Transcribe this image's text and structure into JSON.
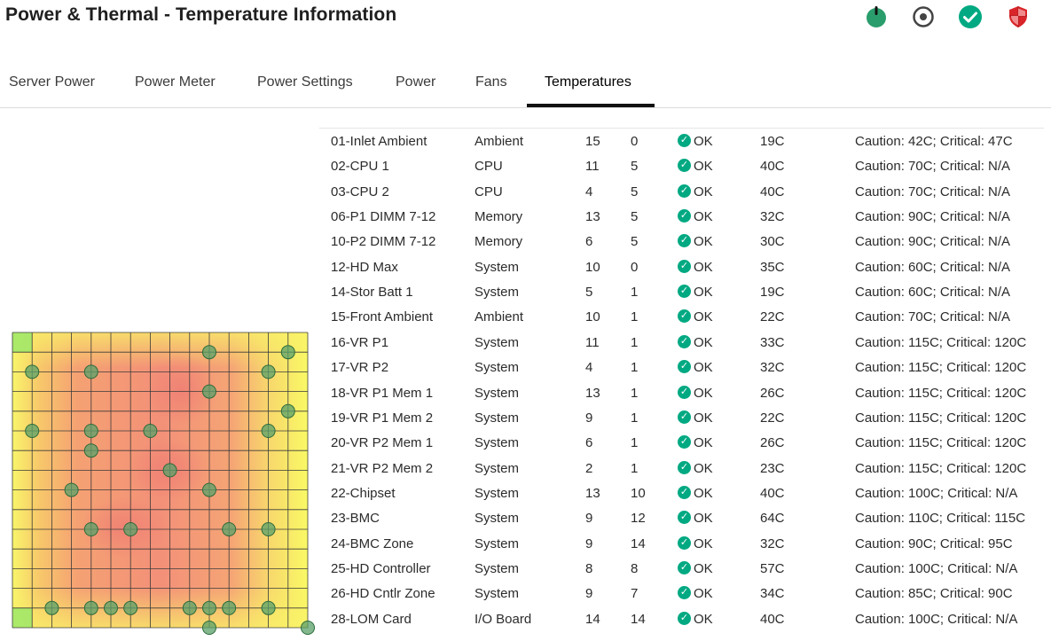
{
  "page": {
    "title": "Power & Thermal - Temperature Information"
  },
  "header_icons": [
    {
      "name": "power-status-icon",
      "color": "#2a9d6c"
    },
    {
      "name": "uid-indicator-icon",
      "color": "#555555"
    },
    {
      "name": "health-ok-icon",
      "color": "#01a982"
    },
    {
      "name": "security-shield-icon",
      "color": "#d9252a"
    }
  ],
  "tabs": [
    {
      "label": "Server Power",
      "active": false
    },
    {
      "label": "Power Meter",
      "active": false
    },
    {
      "label": "Power Settings",
      "active": false
    },
    {
      "label": "Power",
      "active": false
    },
    {
      "label": "Fans",
      "active": false
    },
    {
      "label": "Temperatures",
      "active": true
    }
  ],
  "sensors": [
    {
      "name": "01-Inlet Ambient",
      "context": "Ambient",
      "x": "15",
      "y": "0",
      "status": "OK",
      "reading": "19C",
      "thresholds": "Caution: 42C; Critical: 47C"
    },
    {
      "name": "02-CPU 1",
      "context": "CPU",
      "x": "11",
      "y": "5",
      "status": "OK",
      "reading": "40C",
      "thresholds": "Caution: 70C; Critical: N/A"
    },
    {
      "name": "03-CPU 2",
      "context": "CPU",
      "x": "4",
      "y": "5",
      "status": "OK",
      "reading": "40C",
      "thresholds": "Caution: 70C; Critical: N/A"
    },
    {
      "name": "06-P1 DIMM 7-12",
      "context": "Memory",
      "x": "13",
      "y": "5",
      "status": "OK",
      "reading": "32C",
      "thresholds": "Caution: 90C; Critical: N/A"
    },
    {
      "name": "10-P2 DIMM 7-12",
      "context": "Memory",
      "x": "6",
      "y": "5",
      "status": "OK",
      "reading": "30C",
      "thresholds": "Caution: 90C; Critical: N/A"
    },
    {
      "name": "12-HD Max",
      "context": "System",
      "x": "10",
      "y": "0",
      "status": "OK",
      "reading": "35C",
      "thresholds": "Caution: 60C; Critical: N/A"
    },
    {
      "name": "14-Stor Batt 1",
      "context": "System",
      "x": "5",
      "y": "1",
      "status": "OK",
      "reading": "19C",
      "thresholds": "Caution: 60C; Critical: N/A"
    },
    {
      "name": "15-Front Ambient",
      "context": "Ambient",
      "x": "10",
      "y": "1",
      "status": "OK",
      "reading": "22C",
      "thresholds": "Caution: 70C; Critical: N/A"
    },
    {
      "name": "16-VR P1",
      "context": "System",
      "x": "11",
      "y": "1",
      "status": "OK",
      "reading": "33C",
      "thresholds": "Caution: 115C; Critical: 120C"
    },
    {
      "name": "17-VR P2",
      "context": "System",
      "x": "4",
      "y": "1",
      "status": "OK",
      "reading": "32C",
      "thresholds": "Caution: 115C; Critical: 120C"
    },
    {
      "name": "18-VR P1 Mem 1",
      "context": "System",
      "x": "13",
      "y": "1",
      "status": "OK",
      "reading": "26C",
      "thresholds": "Caution: 115C; Critical: 120C"
    },
    {
      "name": "19-VR P1 Mem 2",
      "context": "System",
      "x": "9",
      "y": "1",
      "status": "OK",
      "reading": "22C",
      "thresholds": "Caution: 115C; Critical: 120C"
    },
    {
      "name": "20-VR P2 Mem 1",
      "context": "System",
      "x": "6",
      "y": "1",
      "status": "OK",
      "reading": "26C",
      "thresholds": "Caution: 115C; Critical: 120C"
    },
    {
      "name": "21-VR P2 Mem 2",
      "context": "System",
      "x": "2",
      "y": "1",
      "status": "OK",
      "reading": "23C",
      "thresholds": "Caution: 115C; Critical: 120C"
    },
    {
      "name": "22-Chipset",
      "context": "System",
      "x": "13",
      "y": "10",
      "status": "OK",
      "reading": "40C",
      "thresholds": "Caution: 100C; Critical: N/A"
    },
    {
      "name": "23-BMC",
      "context": "System",
      "x": "9",
      "y": "12",
      "status": "OK",
      "reading": "64C",
      "thresholds": "Caution: 110C; Critical: 115C"
    },
    {
      "name": "24-BMC Zone",
      "context": "System",
      "x": "9",
      "y": "14",
      "status": "OK",
      "reading": "32C",
      "thresholds": "Caution: 90C; Critical: 95C"
    },
    {
      "name": "25-HD Controller",
      "context": "System",
      "x": "8",
      "y": "8",
      "status": "OK",
      "reading": "57C",
      "thresholds": "Caution: 100C; Critical: N/A"
    },
    {
      "name": "26-HD Cntlr Zone",
      "context": "System",
      "x": "9",
      "y": "7",
      "status": "OK",
      "reading": "34C",
      "thresholds": "Caution: 85C; Critical: 90C"
    },
    {
      "name": "28-LOM Card",
      "context": "I/O Board",
      "x": "14",
      "y": "14",
      "status": "OK",
      "reading": "40C",
      "thresholds": "Caution: 100C; Critical: N/A"
    }
  ],
  "colors": {
    "ok_green": "#01a982",
    "sensor_marker": "#5aa06a"
  }
}
